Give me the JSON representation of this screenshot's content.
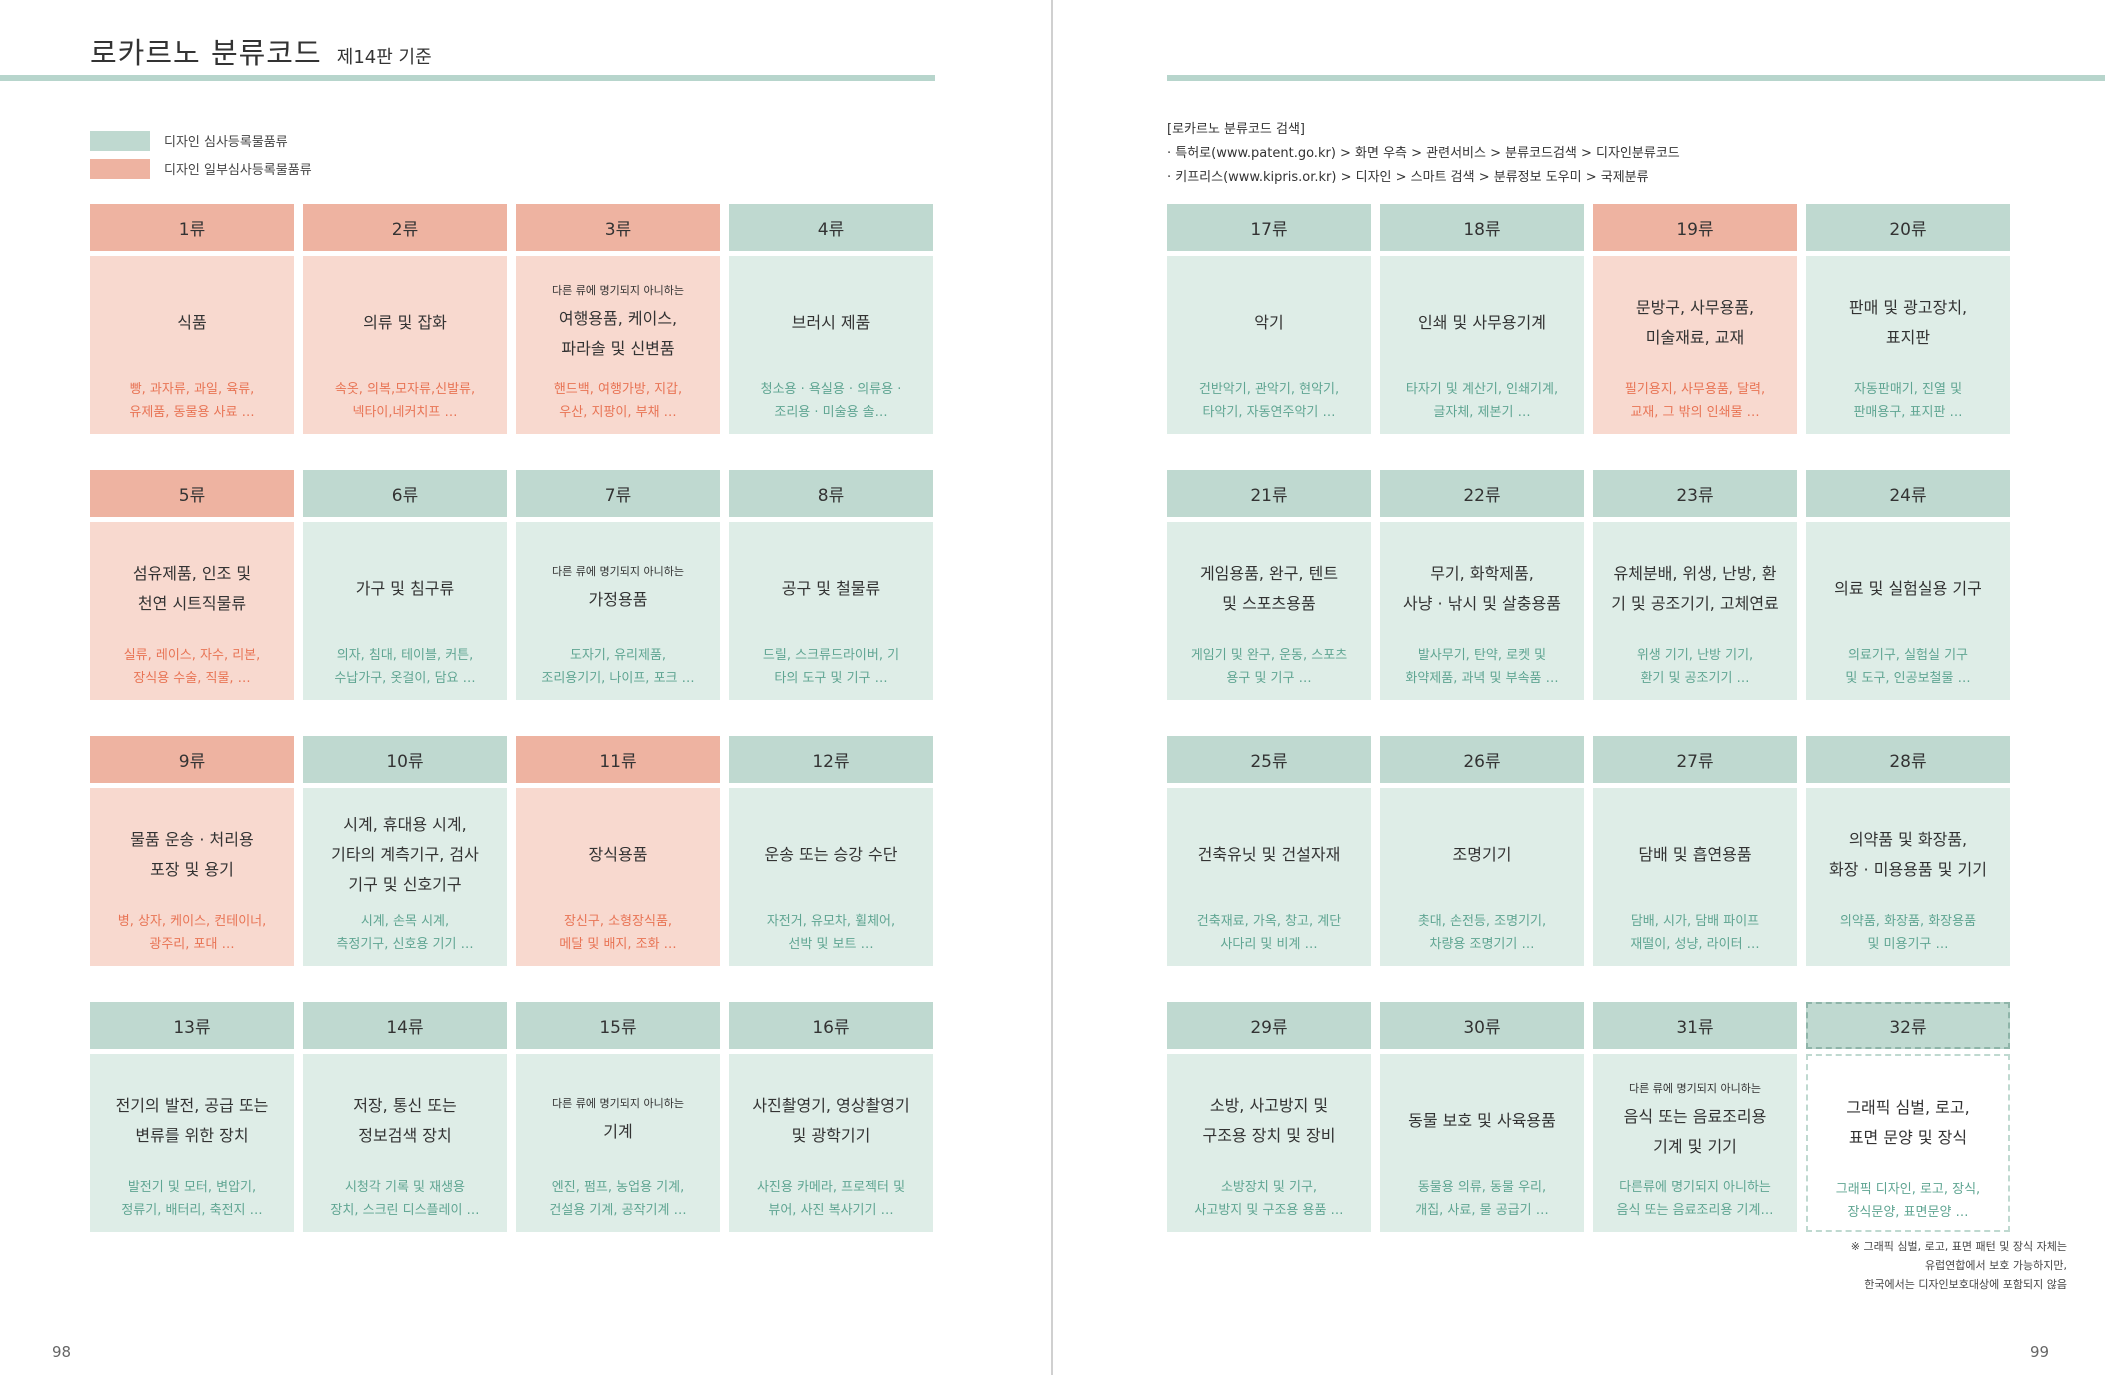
{
  "left_page": {
    "title": "로카르노 분류코드",
    "subtitle": "제14판 기준",
    "page_number": "98",
    "legend": [
      {
        "label": "디자인 심사등록물품류",
        "color": "#bfd9d0"
      },
      {
        "label": "디자인 일부심사등록물품류",
        "color": "#eeb3a1"
      }
    ],
    "classes": [
      {
        "code": "1류",
        "pre": "",
        "name": "식품",
        "examples": "빵, 과자류, 과일, 육류,\n유제품, 동물용 사료 …",
        "type": "pink"
      },
      {
        "code": "2류",
        "pre": "",
        "name": "의류 및 잡화",
        "examples": "속옷, 의복,모자류,신발류,\n넥타이,네커치프 …",
        "type": "pink"
      },
      {
        "code": "3류",
        "pre": "다른 류에 명기되지 아니하는",
        "name": "여행용품, 케이스,\n파라솔 및 신변품",
        "examples": "핸드백, 여행가방, 지갑,\n우산, 지팡이, 부채 …",
        "type": "pink"
      },
      {
        "code": "4류",
        "pre": "",
        "name": "브러시 제품",
        "examples": "청소용 · 욕실용 · 의류용 ·\n조리용 · 미술용 솔…",
        "type": "green"
      },
      {
        "code": "5류",
        "pre": "",
        "name": "섬유제품, 인조 및\n천연 시트직물류",
        "examples": "실류, 레이스, 자수, 리본,\n장식용 수술, 직물, …",
        "type": "pink"
      },
      {
        "code": "6류",
        "pre": "",
        "name": "가구 및 침구류",
        "examples": "의자, 침대, 테이블, 커튼,\n수납가구, 옷걸이, 담요 …",
        "type": "green"
      },
      {
        "code": "7류",
        "pre": "다른 류에 명기되지 아니하는",
        "name": "가정용품",
        "examples": "도자기, 유리제품,\n조리용기기, 나이프, 포크 …",
        "type": "green"
      },
      {
        "code": "8류",
        "pre": "",
        "name": "공구 및 철물류",
        "examples": "드릴, 스크류드라이버, 기\n타의 도구 및 기구 …",
        "type": "green"
      },
      {
        "code": "9류",
        "pre": "",
        "name": "물품 운송 · 처리용\n포장 및 용기",
        "examples": "병, 상자, 케이스, 컨테이너,\n광주리, 포대 …",
        "type": "pink"
      },
      {
        "code": "10류",
        "pre": "",
        "name": "시계, 휴대용 시계,\n기타의 계측기구, 검사\n기구 및 신호기구",
        "examples": "시계, 손목 시계,\n측정기구, 신호용 기기 …",
        "type": "green"
      },
      {
        "code": "11류",
        "pre": "",
        "name": "장식용품",
        "examples": "장신구, 소형장식품,\n메달 및 배지, 조화 …",
        "type": "pink"
      },
      {
        "code": "12류",
        "pre": "",
        "name": "운송 또는 승강 수단",
        "examples": "자전거, 유모차, 휠체어,\n선박 및 보트 …",
        "type": "green"
      },
      {
        "code": "13류",
        "pre": "",
        "name": "전기의 발전, 공급 또는\n변류를 위한 장치",
        "examples": "발전기 및 모터, 변압기,\n정류기, 배터리, 축전지 …",
        "type": "green"
      },
      {
        "code": "14류",
        "pre": "",
        "name": "저장, 통신 또는\n정보검색 장치",
        "examples": "시청각 기록 및 재생용\n장치, 스크린 디스플레이 …",
        "type": "green"
      },
      {
        "code": "15류",
        "pre": "다른 류에 명기되지 아니하는",
        "name": "기계",
        "examples": "엔진, 펌프, 농업용 기계,\n건설용 기계, 공작기계 …",
        "type": "green"
      },
      {
        "code": "16류",
        "pre": "",
        "name": "사진촬영기, 영상촬영기\n및 광학기기",
        "examples": "사진용 카메라, 프로젝터 및\n뷰어, 사진 복사기기 …",
        "type": "green"
      }
    ]
  },
  "right_page": {
    "page_number": "99",
    "search_info": [
      "[로카르노 분류코드 검색]",
      "· 특허로(www.patent.go.kr) > 화면 우측 > 관련서비스 > 분류코드검색 > 디자인분류코드",
      "· 키프리스(www.kipris.or.kr) > 디자인 > 스마트 검색 > 분류정보 도우미 > 국제분류"
    ],
    "classes": [
      {
        "code": "17류",
        "pre": "",
        "name": "악기",
        "examples": "건반악기, 관악기, 현악기,\n타악기, 자동연주악기 …",
        "type": "green"
      },
      {
        "code": "18류",
        "pre": "",
        "name": "인쇄 및 사무용기계",
        "examples": "타자기 및 계산기, 인쇄기계,\n글자체, 제본기 …",
        "type": "green"
      },
      {
        "code": "19류",
        "pre": "",
        "name": "문방구, 사무용품,\n미술재료, 교재",
        "examples": "필기용지, 사무용품, 달력,\n교재, 그 밖의 인쇄물 …",
        "type": "pink"
      },
      {
        "code": "20류",
        "pre": "",
        "name": "판매 및 광고장치,\n표지판",
        "examples": "자동판매기, 진열 및\n판매용구, 표지판 …",
        "type": "green"
      },
      {
        "code": "21류",
        "pre": "",
        "name": "게임용품, 완구, 텐트\n및 스포츠용품",
        "examples": "게임기 및 완구, 운동, 스포츠\n용구 및 기구 …",
        "type": "green"
      },
      {
        "code": "22류",
        "pre": "",
        "name": "무기, 화학제품,\n사냥 · 낚시 및 살충용품",
        "examples": "발사무기, 탄약, 로켓 및\n화약제품, 과녁 및 부속품 …",
        "type": "green"
      },
      {
        "code": "23류",
        "pre": "",
        "name": "유체분배, 위생, 난방, 환\n기 및 공조기기, 고체연료",
        "examples": "위생 기기, 난방 기기,\n환기 및 공조기기 …",
        "type": "green"
      },
      {
        "code": "24류",
        "pre": "",
        "name": "의료 및 실험실용 기구",
        "examples": "의료기구, 실험실 기구\n및 도구, 인공보철물 …",
        "type": "green"
      },
      {
        "code": "25류",
        "pre": "",
        "name": "건축유닛 및 건설자재",
        "examples": "건축재료, 가옥, 창고, 계단\n사다리 및 비계 …",
        "type": "green"
      },
      {
        "code": "26류",
        "pre": "",
        "name": "조명기기",
        "examples": "촛대, 손전등, 조명기기,\n차량용 조명기기 …",
        "type": "green"
      },
      {
        "code": "27류",
        "pre": "",
        "name": "담배 및 흡연용품",
        "examples": "담배, 시가, 담배 파이프\n재떨이, 성냥, 라이터 …",
        "type": "green"
      },
      {
        "code": "28류",
        "pre": "",
        "name": "의약품 및 화장품,\n화장 · 미용용품 및 기기",
        "examples": "의약품, 화장품, 화장용품\n및 미용기구 …",
        "type": "green"
      },
      {
        "code": "29류",
        "pre": "",
        "name": "소방, 사고방지 및\n구조용 장치 및 장비",
        "examples": "소방장치 및 기구,\n사고방지 및 구조용 용품 …",
        "type": "green"
      },
      {
        "code": "30류",
        "pre": "",
        "name": "동물 보호 및 사육용품",
        "examples": "동물용 의류, 동물 우리,\n개집, 사료, 물 공급기 …",
        "type": "green"
      },
      {
        "code": "31류",
        "pre": "다른 류에 명기되지 아니하는",
        "name": "음식 또는 음료조리용\n기계 및 기기",
        "examples": "다른류에 명기되지 아니하는\n음식 또는 음료조리용 기계…",
        "type": "green"
      },
      {
        "code": "32류",
        "pre": "",
        "name": "그래픽 심벌, 로고,\n표면 문양 및 장식",
        "examples": "그래픽 디자인, 로고, 장식,\n장식문양, 표면문양 …",
        "type": "dashed"
      }
    ],
    "note": "※ 그래픽 심벌, 로고, 표면 패턴 및 장식 자체는\n유럽연합에서 보호 가능하지만,\n한국에서는 디자인보호대상에 포함되지 않음"
  }
}
